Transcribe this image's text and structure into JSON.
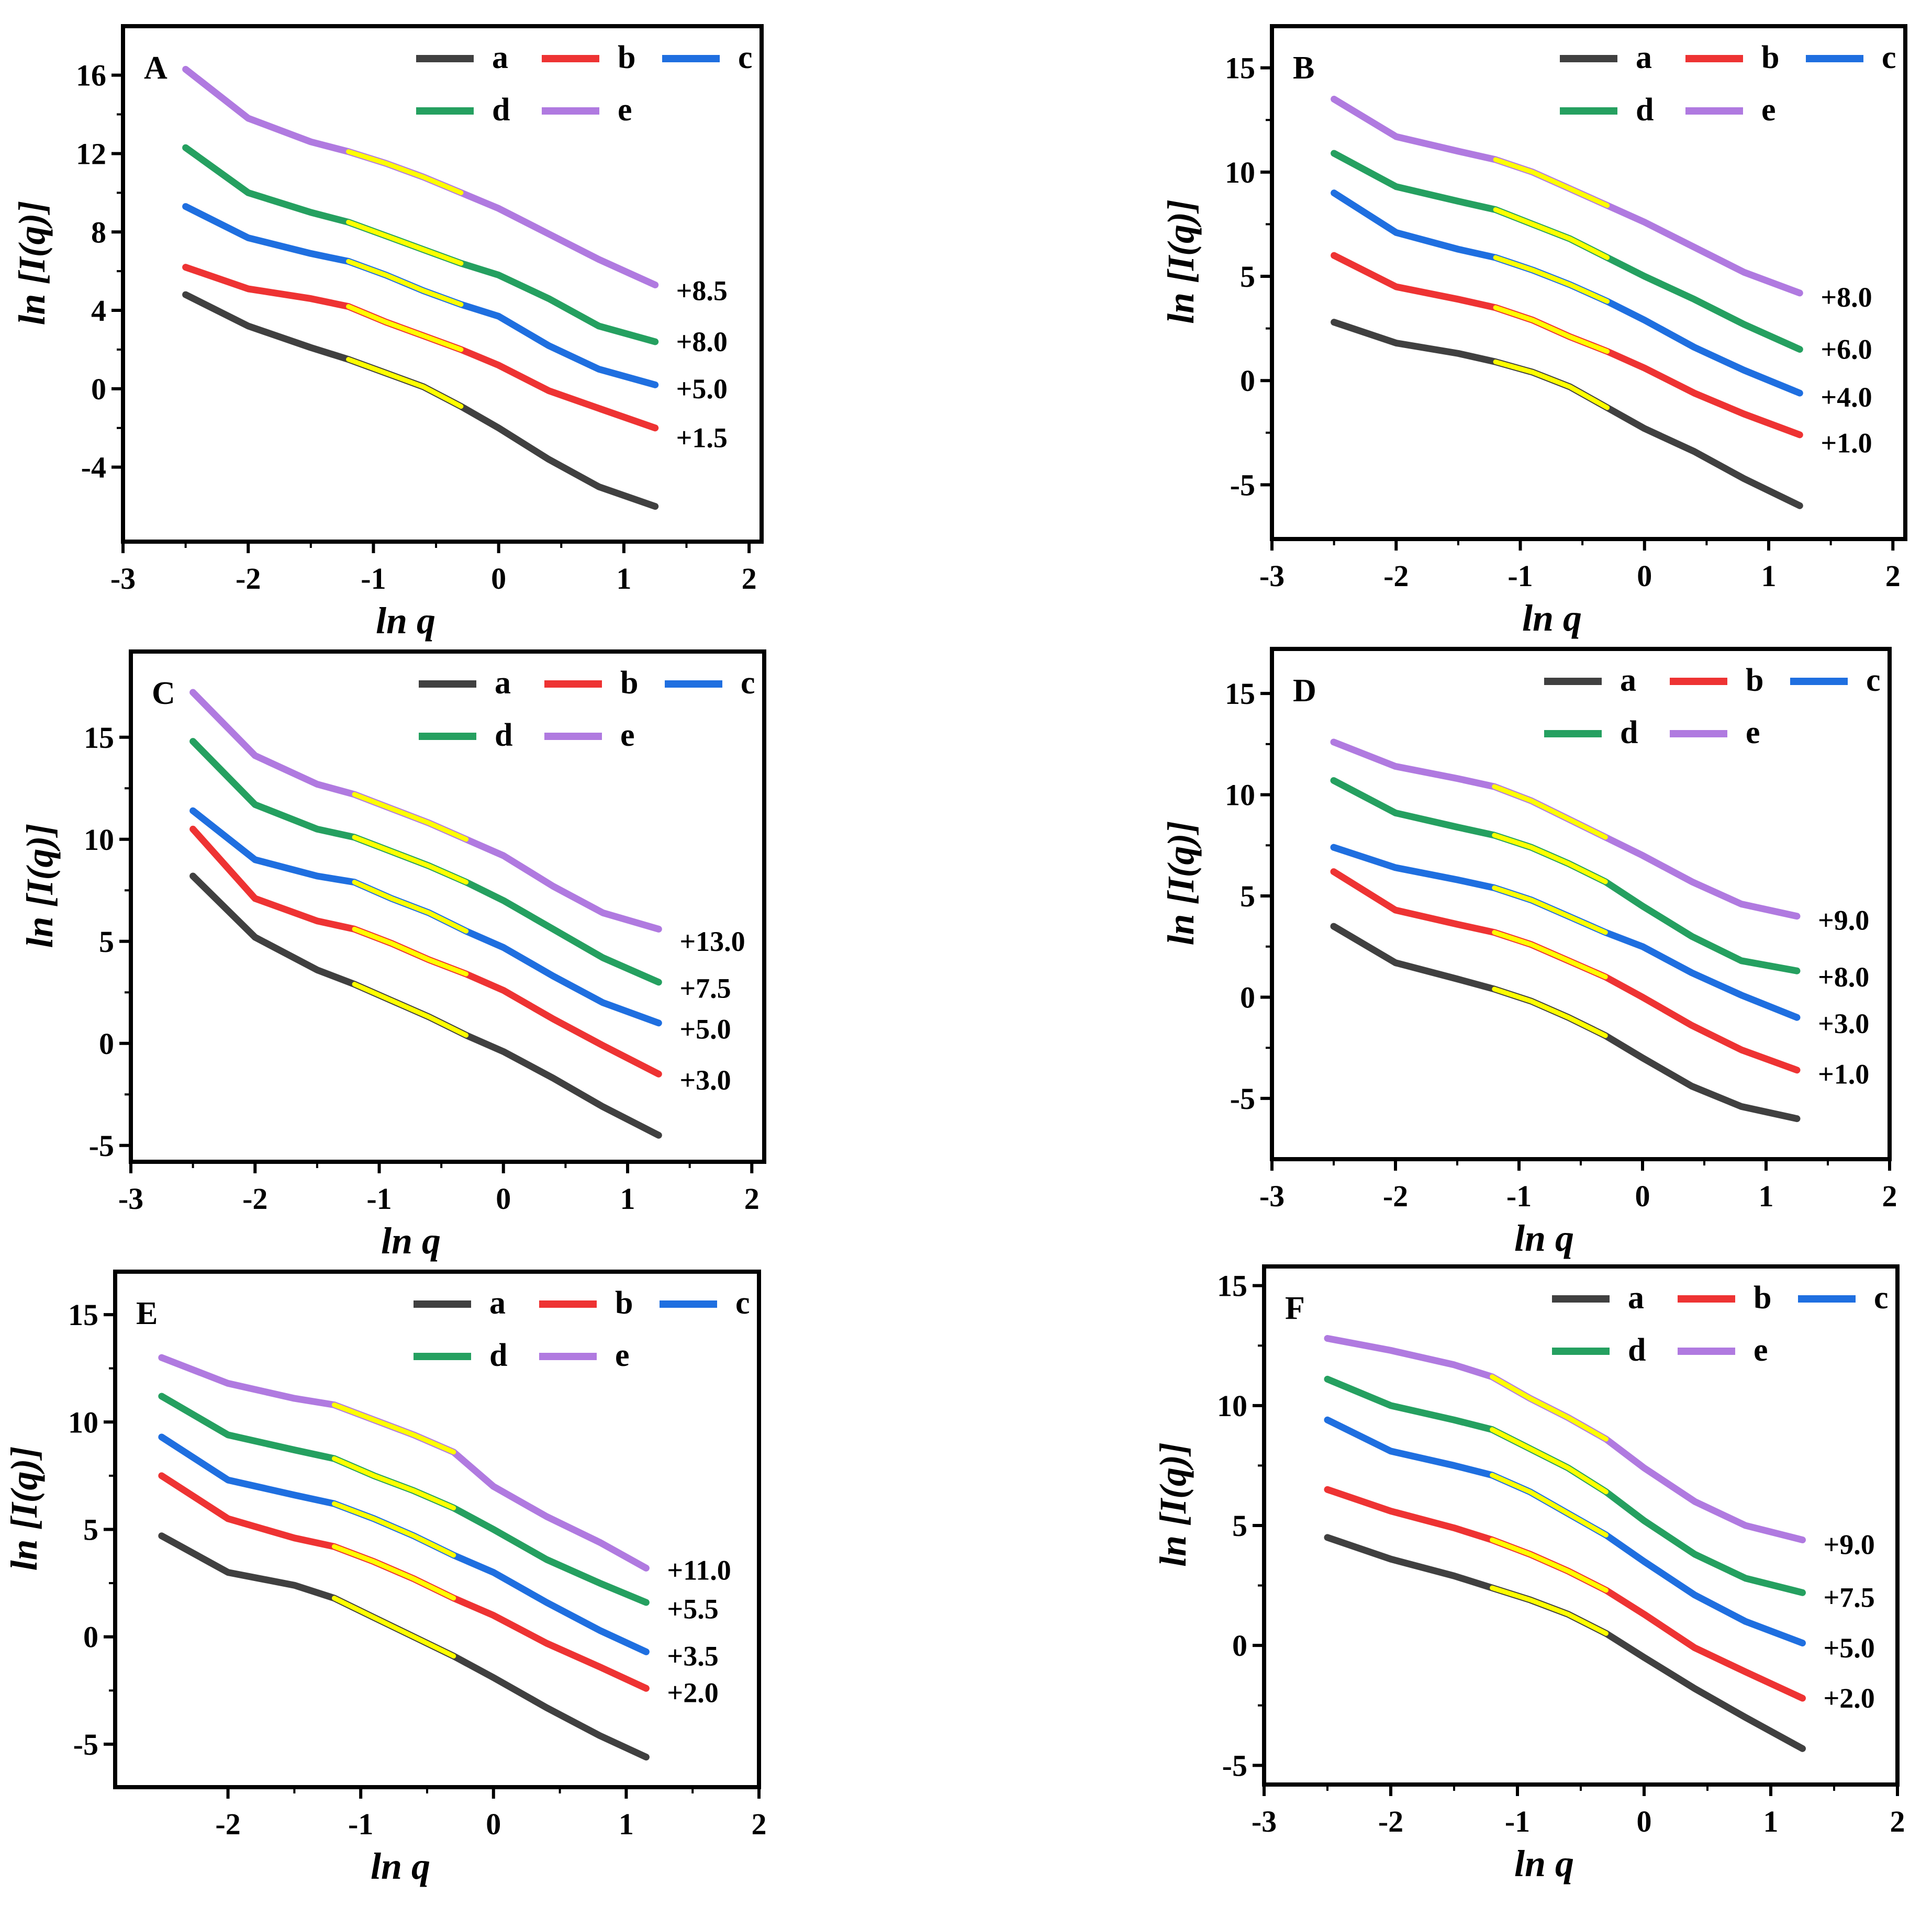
{
  "figure": {
    "x_title": "ln q",
    "y_title": "ln [I(q)]",
    "fit_color": "#ffff00"
  },
  "legend": [
    {
      "key": "a",
      "color": "#404040"
    },
    {
      "key": "b",
      "color": "#ee3333"
    },
    {
      "key": "c",
      "color": "#1f6fe0"
    },
    {
      "key": "d",
      "color": "#25a060"
    },
    {
      "key": "e",
      "color": "#b07ae0"
    }
  ],
  "chart_data": [
    {
      "type": "line",
      "panel": "A",
      "xlim": [
        -3,
        2.1
      ],
      "ylim": [
        -7.8,
        18.5
      ],
      "xticks": [
        -3,
        -2,
        -1,
        0,
        1,
        2
      ],
      "yticks": [
        -4,
        0,
        4,
        8,
        12,
        16
      ],
      "xlabel": "ln q",
      "ylabel": "ln [I(q)]",
      "x": [
        -2.5,
        -2.0,
        -1.5,
        -1.2,
        -0.9,
        -0.6,
        -0.3,
        0.0,
        0.4,
        0.8,
        1.25
      ],
      "fit_range": [
        -1.2,
        -0.3
      ],
      "series": [
        {
          "name": "a",
          "values": [
            4.8,
            3.2,
            2.1,
            1.5,
            0.8,
            0.1,
            -0.9,
            -2.0,
            -3.6,
            -5.0,
            -6.0
          ]
        },
        {
          "name": "b",
          "values": [
            6.2,
            5.1,
            4.6,
            4.2,
            3.4,
            2.7,
            2.0,
            1.2,
            -0.1,
            -1.0,
            -2.0
          ]
        },
        {
          "name": "c",
          "values": [
            9.3,
            7.7,
            6.9,
            6.5,
            5.8,
            5.0,
            4.3,
            3.7,
            2.2,
            1.0,
            0.2
          ]
        },
        {
          "name": "d",
          "values": [
            12.3,
            10.0,
            9.0,
            8.5,
            7.8,
            7.1,
            6.4,
            5.8,
            4.6,
            3.2,
            2.4
          ]
        },
        {
          "name": "e",
          "values": [
            16.3,
            13.8,
            12.6,
            12.1,
            11.5,
            10.8,
            10.0,
            9.2,
            7.9,
            6.6,
            5.3
          ]
        }
      ],
      "offsets": [
        {
          "series": "e",
          "label": "+8.5",
          "y": 5.0
        },
        {
          "series": "d",
          "label": "+8.0",
          "y": 2.4
        },
        {
          "series": "c",
          "label": "+5.0",
          "y": 0.0
        },
        {
          "series": "b",
          "label": "+1.5",
          "y": -2.5
        }
      ]
    },
    {
      "type": "line",
      "panel": "B",
      "xlim": [
        -3,
        2.1
      ],
      "ylim": [
        -7.6,
        17.0
      ],
      "xticks": [
        -3,
        -2,
        -1,
        0,
        1,
        2
      ],
      "yticks": [
        -5,
        0,
        5,
        10,
        15
      ],
      "xlabel": "ln q",
      "ylabel": "ln [I(q)]",
      "x": [
        -2.5,
        -2.0,
        -1.5,
        -1.2,
        -0.9,
        -0.6,
        -0.3,
        0.0,
        0.4,
        0.8,
        1.25
      ],
      "fit_range": [
        -1.2,
        -0.3
      ],
      "series": [
        {
          "name": "a",
          "values": [
            2.8,
            1.8,
            1.3,
            0.9,
            0.4,
            -0.3,
            -1.3,
            -2.3,
            -3.4,
            -4.7,
            -6.0
          ]
        },
        {
          "name": "b",
          "values": [
            6.0,
            4.5,
            3.9,
            3.5,
            2.9,
            2.1,
            1.4,
            0.6,
            -0.6,
            -1.6,
            -2.6
          ]
        },
        {
          "name": "c",
          "values": [
            9.0,
            7.1,
            6.3,
            5.9,
            5.3,
            4.6,
            3.8,
            2.9,
            1.6,
            0.5,
            -0.6
          ]
        },
        {
          "name": "d",
          "values": [
            10.9,
            9.3,
            8.6,
            8.2,
            7.5,
            6.8,
            5.9,
            5.0,
            3.9,
            2.7,
            1.5
          ]
        },
        {
          "name": "e",
          "values": [
            13.5,
            11.7,
            11.0,
            10.6,
            10.0,
            9.2,
            8.4,
            7.6,
            6.4,
            5.2,
            4.2
          ]
        }
      ],
      "offsets": [
        {
          "series": "e",
          "label": "+8.0",
          "y": 4.0
        },
        {
          "series": "d",
          "label": "+6.0",
          "y": 1.5
        },
        {
          "series": "c",
          "label": "+4.0",
          "y": -0.8
        },
        {
          "series": "b",
          "label": "+1.0",
          "y": -3.0
        }
      ]
    },
    {
      "type": "line",
      "panel": "C",
      "xlim": [
        -3,
        2.1
      ],
      "ylim": [
        -5.8,
        19.2
      ],
      "xticks": [
        -3,
        -2,
        -1,
        0,
        1,
        2
      ],
      "yticks": [
        -5,
        0,
        5,
        10,
        15
      ],
      "xlabel": "ln q",
      "ylabel": "ln [I(q)]",
      "x": [
        -2.5,
        -2.0,
        -1.5,
        -1.2,
        -0.9,
        -0.6,
        -0.3,
        0.0,
        0.4,
        0.8,
        1.25
      ],
      "fit_range": [
        -1.2,
        -0.3
      ],
      "series": [
        {
          "name": "a",
          "values": [
            8.2,
            5.2,
            3.6,
            2.9,
            2.1,
            1.3,
            0.4,
            -0.4,
            -1.7,
            -3.1,
            -4.5
          ]
        },
        {
          "name": "b",
          "values": [
            10.5,
            7.1,
            6.0,
            5.6,
            4.9,
            4.1,
            3.4,
            2.6,
            1.2,
            -0.1,
            -1.5
          ]
        },
        {
          "name": "c",
          "values": [
            11.4,
            9.0,
            8.2,
            7.9,
            7.1,
            6.4,
            5.5,
            4.7,
            3.3,
            2.0,
            1.0
          ]
        },
        {
          "name": "d",
          "values": [
            14.8,
            11.7,
            10.5,
            10.1,
            9.4,
            8.7,
            7.9,
            7.0,
            5.6,
            4.2,
            3.0
          ]
        },
        {
          "name": "e",
          "values": [
            17.2,
            14.1,
            12.7,
            12.2,
            11.5,
            10.8,
            10.0,
            9.2,
            7.7,
            6.4,
            5.6
          ]
        }
      ],
      "offsets": [
        {
          "series": "e",
          "label": "+13.0",
          "y": 5.0
        },
        {
          "series": "d",
          "label": "+7.5",
          "y": 2.7
        },
        {
          "series": "c",
          "label": "+5.0",
          "y": 0.7
        },
        {
          "series": "b",
          "label": "+3.0",
          "y": -1.8
        }
      ]
    },
    {
      "type": "line",
      "panel": "D",
      "xlim": [
        -3,
        2.0
      ],
      "ylim": [
        -8.0,
        17.2
      ],
      "xticks": [
        -3,
        -2,
        -1,
        0,
        1,
        2
      ],
      "yticks": [
        -5,
        0,
        5,
        10,
        15
      ],
      "xlabel": "ln q",
      "ylabel": "ln [I(q)]",
      "x": [
        -2.5,
        -2.0,
        -1.5,
        -1.2,
        -0.9,
        -0.6,
        -0.3,
        0.0,
        0.4,
        0.8,
        1.25
      ],
      "fit_range": [
        -1.2,
        -0.3
      ],
      "series": [
        {
          "name": "a",
          "values": [
            3.5,
            1.7,
            0.9,
            0.4,
            -0.2,
            -1.0,
            -1.9,
            -3.0,
            -4.4,
            -5.4,
            -6.0
          ]
        },
        {
          "name": "b",
          "values": [
            6.2,
            4.3,
            3.6,
            3.2,
            2.6,
            1.8,
            1.0,
            0.0,
            -1.4,
            -2.6,
            -3.6
          ]
        },
        {
          "name": "c",
          "values": [
            7.4,
            6.4,
            5.8,
            5.4,
            4.8,
            4.0,
            3.2,
            2.5,
            1.2,
            0.1,
            -1.0
          ]
        },
        {
          "name": "d",
          "values": [
            10.7,
            9.1,
            8.4,
            8.0,
            7.4,
            6.6,
            5.7,
            4.5,
            3.0,
            1.8,
            1.3
          ]
        },
        {
          "name": "e",
          "values": [
            12.6,
            11.4,
            10.8,
            10.4,
            9.7,
            8.8,
            7.9,
            7.0,
            5.7,
            4.6,
            4.0
          ]
        }
      ],
      "offsets": [
        {
          "series": "e",
          "label": "+9.0",
          "y": 3.8
        },
        {
          "series": "d",
          "label": "+8.0",
          "y": 1.0
        },
        {
          "series": "c",
          "label": "+3.0",
          "y": -1.3
        },
        {
          "series": "b",
          "label": "+1.0",
          "y": -3.8
        }
      ]
    },
    {
      "type": "line",
      "panel": "E",
      "xlim": [
        -2.85,
        2.0
      ],
      "ylim": [
        -7.0,
        17.0
      ],
      "xticks": [
        -2,
        -1,
        0,
        1,
        2
      ],
      "yticks": [
        -5,
        0,
        5,
        10,
        15
      ],
      "xlabel": "ln q",
      "ylabel": "ln [I(q)]",
      "x": [
        -2.5,
        -2.0,
        -1.5,
        -1.2,
        -0.9,
        -0.6,
        -0.3,
        0.0,
        0.4,
        0.8,
        1.15
      ],
      "fit_range": [
        -1.2,
        -0.3
      ],
      "series": [
        {
          "name": "a",
          "values": [
            4.7,
            3.0,
            2.4,
            1.8,
            0.9,
            0.0,
            -0.9,
            -1.9,
            -3.3,
            -4.6,
            -5.6
          ]
        },
        {
          "name": "b",
          "values": [
            7.5,
            5.5,
            4.6,
            4.2,
            3.5,
            2.7,
            1.8,
            1.0,
            -0.3,
            -1.4,
            -2.4
          ]
        },
        {
          "name": "c",
          "values": [
            9.3,
            7.3,
            6.6,
            6.2,
            5.5,
            4.7,
            3.8,
            3.0,
            1.6,
            0.3,
            -0.7
          ]
        },
        {
          "name": "d",
          "values": [
            11.2,
            9.4,
            8.7,
            8.3,
            7.5,
            6.8,
            6.0,
            5.0,
            3.6,
            2.5,
            1.6
          ]
        },
        {
          "name": "e",
          "values": [
            13.0,
            11.8,
            11.1,
            10.8,
            10.1,
            9.4,
            8.6,
            7.0,
            5.6,
            4.4,
            3.2
          ]
        }
      ],
      "offsets": [
        {
          "series": "e",
          "label": "+11.0",
          "y": 3.1
        },
        {
          "series": "d",
          "label": "+5.5",
          "y": 1.3
        },
        {
          "series": "c",
          "label": "+3.5",
          "y": -0.9
        },
        {
          "series": "b",
          "label": "+2.0",
          "y": -2.6
        }
      ]
    },
    {
      "type": "line",
      "panel": "F",
      "xlim": [
        -3,
        2.0
      ],
      "ylim": [
        -5.8,
        15.8
      ],
      "xticks": [
        -3,
        -2,
        -1,
        0,
        1,
        2
      ],
      "yticks": [
        -5,
        0,
        5,
        10,
        15
      ],
      "xlabel": "ln q",
      "ylabel": "ln [I(q)]",
      "x": [
        -2.5,
        -2.0,
        -1.5,
        -1.2,
        -0.9,
        -0.6,
        -0.3,
        0.0,
        0.4,
        0.8,
        1.25
      ],
      "fit_range": [
        -1.2,
        -0.3
      ],
      "series": [
        {
          "name": "a",
          "values": [
            4.5,
            3.6,
            2.9,
            2.4,
            1.9,
            1.3,
            0.5,
            -0.5,
            -1.8,
            -3.0,
            -4.3
          ]
        },
        {
          "name": "b",
          "values": [
            6.5,
            5.6,
            4.9,
            4.4,
            3.8,
            3.1,
            2.3,
            1.3,
            -0.1,
            -1.1,
            -2.2
          ]
        },
        {
          "name": "c",
          "values": [
            9.4,
            8.1,
            7.5,
            7.1,
            6.4,
            5.5,
            4.6,
            3.5,
            2.1,
            1.0,
            0.1
          ]
        },
        {
          "name": "d",
          "values": [
            11.1,
            10.0,
            9.4,
            9.0,
            8.2,
            7.4,
            6.4,
            5.2,
            3.8,
            2.8,
            2.2
          ]
        },
        {
          "name": "e",
          "values": [
            12.8,
            12.3,
            11.7,
            11.2,
            10.3,
            9.5,
            8.6,
            7.4,
            6.0,
            5.0,
            4.4
          ]
        }
      ],
      "offsets": [
        {
          "series": "e",
          "label": "+9.0",
          "y": 4.2
        },
        {
          "series": "d",
          "label": "+7.5",
          "y": 2.0
        },
        {
          "series": "c",
          "label": "+5.0",
          "y": -0.1
        },
        {
          "series": "b",
          "label": "+2.0",
          "y": -2.2
        }
      ]
    }
  ]
}
